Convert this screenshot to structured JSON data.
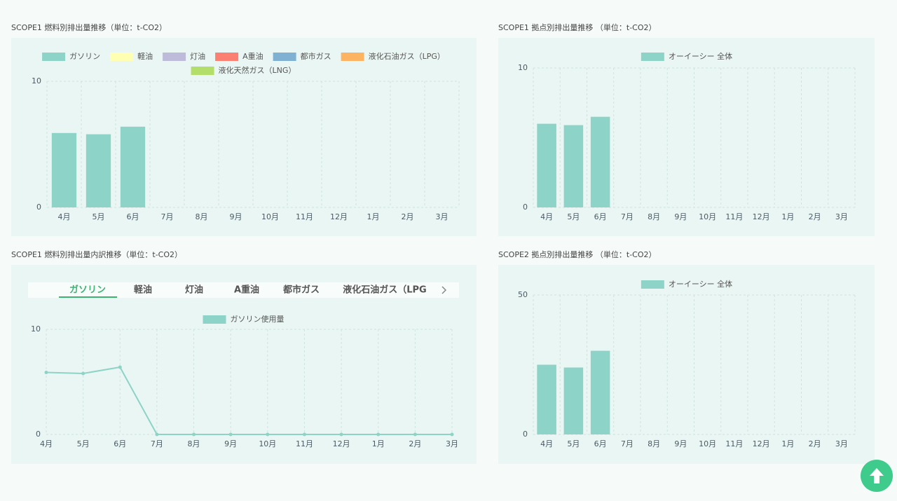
{
  "chart_data": [
    {
      "type": "bar",
      "stacked": true,
      "title": "SCOPE1 燃料別排出量推移（単位：t-CO2）",
      "categories": [
        "4月",
        "5月",
        "6月",
        "7月",
        "8月",
        "9月",
        "10月",
        "11月",
        "12月",
        "1月",
        "2月",
        "3月"
      ],
      "series": [
        {
          "name": "ガソリン",
          "color": "#8dd3c7",
          "values": [
            5.9,
            5.8,
            6.4,
            0,
            0,
            0,
            0,
            0,
            0,
            0,
            0,
            0
          ]
        },
        {
          "name": "軽油",
          "color": "#ffffb3",
          "values": [
            0,
            0,
            0,
            0,
            0,
            0,
            0,
            0,
            0,
            0,
            0,
            0
          ]
        },
        {
          "name": "灯油",
          "color": "#bebada",
          "values": [
            0,
            0,
            0,
            0,
            0,
            0,
            0,
            0,
            0,
            0,
            0,
            0
          ]
        },
        {
          "name": "A重油",
          "color": "#fb8072",
          "values": [
            0,
            0,
            0,
            0,
            0,
            0,
            0,
            0,
            0,
            0,
            0,
            0
          ]
        },
        {
          "name": "都市ガス",
          "color": "#80b1d3",
          "values": [
            0,
            0,
            0,
            0,
            0,
            0,
            0,
            0,
            0,
            0,
            0,
            0
          ]
        },
        {
          "name": "液化石油ガス（LPG）",
          "color": "#fdb462",
          "values": [
            0,
            0,
            0,
            0,
            0,
            0,
            0,
            0,
            0,
            0,
            0,
            0
          ]
        },
        {
          "name": "液化天然ガス（LNG）",
          "color": "#b3de69",
          "values": [
            0,
            0,
            0,
            0,
            0,
            0,
            0,
            0,
            0,
            0,
            0,
            0
          ]
        }
      ],
      "ylim": [
        0,
        10
      ],
      "yticks": [
        0,
        10
      ],
      "grid": true
    },
    {
      "type": "bar",
      "title": "SCOPE1 拠点別排出量推移 （単位：t-CO2）",
      "categories": [
        "4月",
        "5月",
        "6月",
        "7月",
        "8月",
        "9月",
        "10月",
        "11月",
        "12月",
        "1月",
        "2月",
        "3月"
      ],
      "series": [
        {
          "name": "オーイーシー 全体",
          "color": "#8dd3c7",
          "values": [
            6.0,
            5.9,
            6.5,
            0,
            0,
            0,
            0,
            0,
            0,
            0,
            0,
            0
          ]
        }
      ],
      "ylim": [
        0,
        10
      ],
      "yticks": [
        0,
        10
      ],
      "grid": true
    },
    {
      "type": "line",
      "title": "SCOPE1 燃料別排出量内訳推移（単位：t-CO2）",
      "tabs": [
        "ガソリン",
        "軽油",
        "灯油",
        "A重油",
        "都市ガス",
        "液化石油ガス（LPG"
      ],
      "categories": [
        "4月",
        "5月",
        "6月",
        "7月",
        "8月",
        "9月",
        "10月",
        "11月",
        "12月",
        "1月",
        "2月",
        "3月"
      ],
      "series": [
        {
          "name": "ガソリン使用量",
          "color": "#8dd3c7",
          "values": [
            5.9,
            5.8,
            6.4,
            0,
            0,
            0,
            0,
            0,
            0,
            0,
            0,
            0
          ]
        }
      ],
      "ylim": [
        0,
        10
      ],
      "yticks": [
        0,
        10
      ],
      "grid": true
    },
    {
      "type": "bar",
      "title": "SCOPE2 拠点別排出量推移 （単位：t-CO2）",
      "categories": [
        "4月",
        "5月",
        "6月",
        "7月",
        "8月",
        "9月",
        "10月",
        "11月",
        "12月",
        "1月",
        "2月",
        "3月"
      ],
      "series": [
        {
          "name": "オーイーシー 全体",
          "color": "#8dd3c7",
          "values": [
            25,
            24,
            30,
            0,
            0,
            0,
            0,
            0,
            0,
            0,
            0,
            0
          ]
        }
      ],
      "ylim": [
        0,
        50
      ],
      "yticks": [
        0,
        50
      ],
      "grid": true
    }
  ]
}
